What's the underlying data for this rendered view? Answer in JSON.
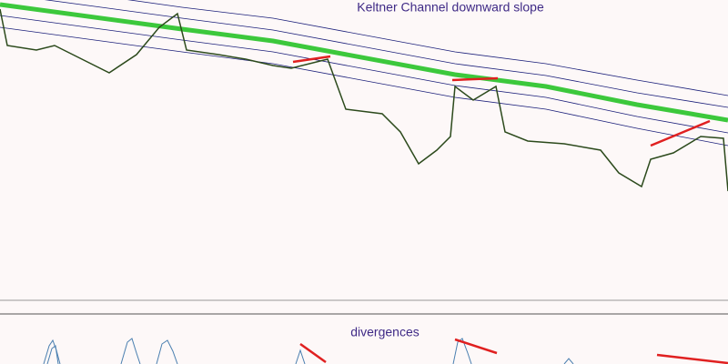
{
  "title": "Keltner Channel downward slope",
  "lower_panel": {
    "title": "divergences"
  }
}
